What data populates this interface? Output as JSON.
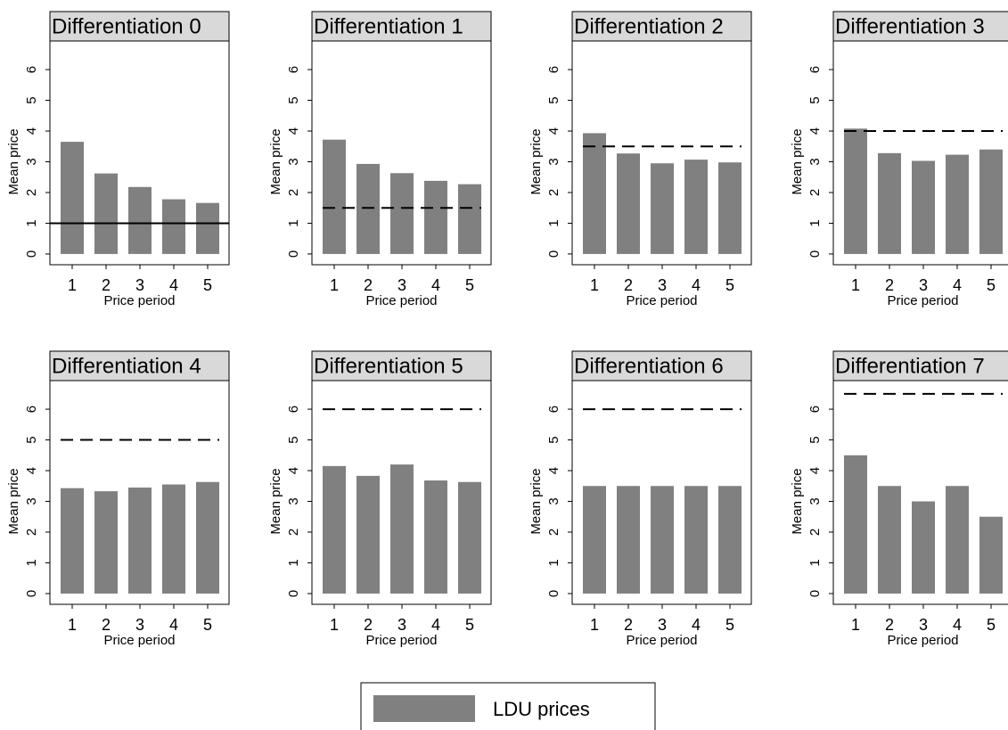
{
  "chart_data": [
    {
      "type": "bar",
      "title": "Differentiation 0",
      "x_label": "Price period",
      "y_label": "Mean price",
      "categories": [
        "1",
        "2",
        "3",
        "4",
        "5"
      ],
      "values": [
        3.65,
        2.62,
        2.18,
        1.78,
        1.66
      ],
      "color": "#808080",
      "ylim": [
        -0.35,
        6.93
      ],
      "yticks": [
        0,
        1,
        2,
        3,
        4,
        5,
        6
      ],
      "reference_line": {
        "value": 1,
        "style": "solid"
      }
    },
    {
      "type": "bar",
      "title": "Differentiation 1",
      "x_label": "Price period",
      "y_label": "Mean price",
      "categories": [
        "1",
        "2",
        "3",
        "4",
        "5"
      ],
      "values": [
        3.72,
        2.93,
        2.63,
        2.38,
        2.27
      ],
      "color": "#808080",
      "ylim": [
        -0.35,
        6.93
      ],
      "yticks": [
        0,
        1,
        2,
        3,
        4,
        5,
        6
      ],
      "reference_line": {
        "value": 1.5,
        "style": "dashed"
      }
    },
    {
      "type": "bar",
      "title": "Differentiation 2",
      "x_label": "Price period",
      "y_label": "Mean price",
      "categories": [
        "1",
        "2",
        "3",
        "4",
        "5"
      ],
      "values": [
        3.93,
        3.27,
        2.95,
        3.07,
        2.98
      ],
      "color": "#808080",
      "ylim": [
        -0.35,
        6.93
      ],
      "yticks": [
        0,
        1,
        2,
        3,
        4,
        5,
        6
      ],
      "reference_line": {
        "value": 3.5,
        "style": "dashed"
      }
    },
    {
      "type": "bar",
      "title": "Differentiation 3",
      "x_label": "Price period",
      "y_label": "Mean price",
      "categories": [
        "1",
        "2",
        "3",
        "4",
        "5"
      ],
      "values": [
        4.08,
        3.28,
        3.03,
        3.23,
        3.4
      ],
      "color": "#808080",
      "ylim": [
        -0.35,
        6.93
      ],
      "yticks": [
        0,
        1,
        2,
        3,
        4,
        5,
        6
      ],
      "reference_line": {
        "value": 4,
        "style": "dashed"
      }
    },
    {
      "type": "bar",
      "title": "Differentiation 4",
      "x_label": "Price period",
      "y_label": "Mean price",
      "categories": [
        "1",
        "2",
        "3",
        "4",
        "5"
      ],
      "values": [
        3.43,
        3.33,
        3.45,
        3.55,
        3.63
      ],
      "color": "#808080",
      "ylim": [
        -0.35,
        6.93
      ],
      "yticks": [
        0,
        1,
        2,
        3,
        4,
        5,
        6
      ],
      "reference_line": {
        "value": 5,
        "style": "dashed"
      }
    },
    {
      "type": "bar",
      "title": "Differentiation 5",
      "x_label": "Price period",
      "y_label": "Mean price",
      "categories": [
        "1",
        "2",
        "3",
        "4",
        "5"
      ],
      "values": [
        4.15,
        3.83,
        4.2,
        3.68,
        3.63
      ],
      "color": "#808080",
      "ylim": [
        -0.35,
        6.93
      ],
      "yticks": [
        0,
        1,
        2,
        3,
        4,
        5,
        6
      ],
      "reference_line": {
        "value": 6,
        "style": "dashed"
      }
    },
    {
      "type": "bar",
      "title": "Differentiation 6",
      "x_label": "Price period",
      "y_label": "Mean price",
      "categories": [
        "1",
        "2",
        "3",
        "4",
        "5"
      ],
      "values": [
        3.5,
        3.5,
        3.5,
        3.5,
        3.5
      ],
      "color": "#808080",
      "ylim": [
        -0.35,
        6.93
      ],
      "yticks": [
        0,
        1,
        2,
        3,
        4,
        5,
        6
      ],
      "reference_line": {
        "value": 6,
        "style": "dashed"
      }
    },
    {
      "type": "bar",
      "title": "Differentiation 7",
      "x_label": "Price period",
      "y_label": "Mean price",
      "categories": [
        "1",
        "2",
        "3",
        "4",
        "5"
      ],
      "values": [
        4.5,
        3.5,
        3.0,
        3.5,
        2.5
      ],
      "color": "#808080",
      "ylim": [
        -0.35,
        6.93
      ],
      "yticks": [
        0,
        1,
        2,
        3,
        4,
        5,
        6
      ],
      "reference_line": {
        "value": 6.5,
        "style": "dashed"
      }
    }
  ],
  "legend": {
    "label": "LDU prices",
    "color": "#808080"
  }
}
